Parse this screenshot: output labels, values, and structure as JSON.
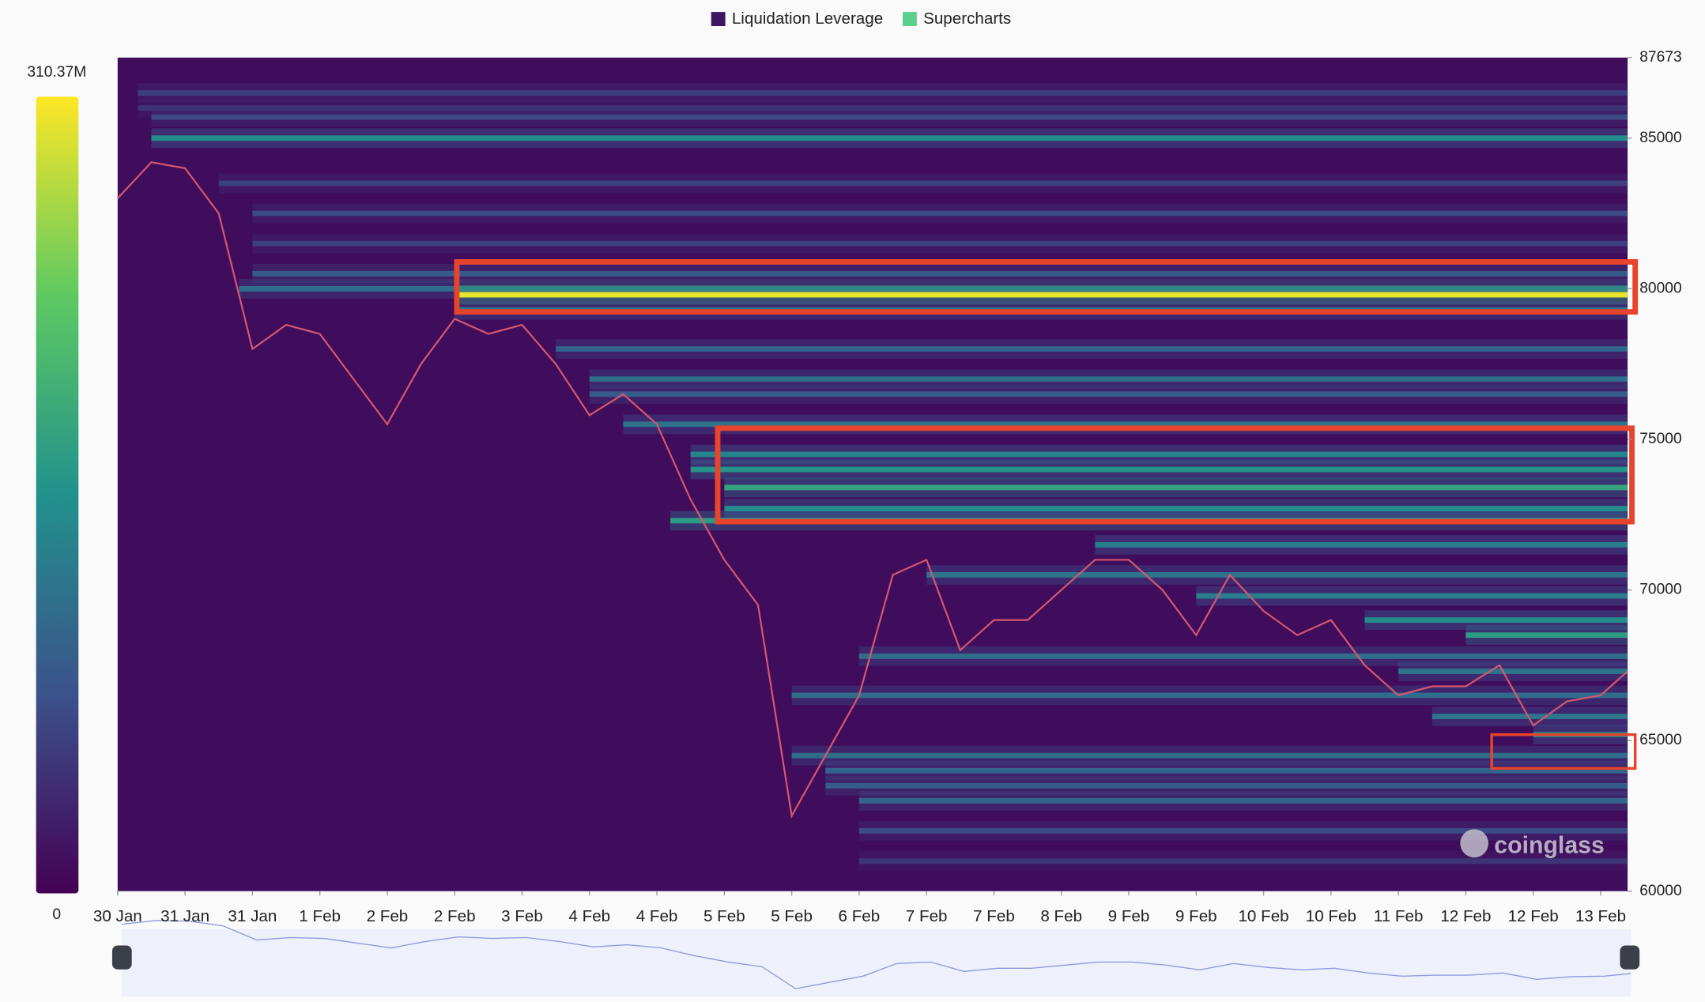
{
  "chart_data": {
    "type": "heatmap",
    "legend": [
      {
        "name": "Liquidation Leverage",
        "color": "#3d1762"
      },
      {
        "name": "Supercharts",
        "color": "#5ccf8e"
      }
    ],
    "watermark": "coinglass",
    "zlim": [
      0,
      310.37
    ],
    "zticks": [
      0,
      {
        "value": 310.37,
        "label": "310.37M"
      }
    ],
    "ylim": [
      60000,
      87673
    ],
    "yticks": [
      60000,
      65000,
      70000,
      75000,
      80000,
      85000,
      87673
    ],
    "xlim": [
      0,
      22.4
    ],
    "xticks": [
      {
        "value": 0,
        "label": "30 Jan"
      },
      {
        "value": 1,
        "label": "31 Jan"
      },
      {
        "value": 2,
        "label": "31 Jan"
      },
      {
        "value": 3,
        "label": "1 Feb"
      },
      {
        "value": 4,
        "label": "2 Feb"
      },
      {
        "value": 5,
        "label": "2 Feb"
      },
      {
        "value": 6,
        "label": "3 Feb"
      },
      {
        "value": 7,
        "label": "4 Feb"
      },
      {
        "value": 8,
        "label": "4 Feb"
      },
      {
        "value": 9,
        "label": "5 Feb"
      },
      {
        "value": 10,
        "label": "5 Feb"
      },
      {
        "value": 11,
        "label": "6 Feb"
      },
      {
        "value": 12,
        "label": "7 Feb"
      },
      {
        "value": 13,
        "label": "7 Feb"
      },
      {
        "value": 14,
        "label": "8 Feb"
      },
      {
        "value": 15,
        "label": "9 Feb"
      },
      {
        "value": 16,
        "label": "9 Feb"
      },
      {
        "value": 17,
        "label": "10 Feb"
      },
      {
        "value": 18,
        "label": "10 Feb"
      },
      {
        "value": 19,
        "label": "11 Feb"
      },
      {
        "value": 20,
        "label": "12 Feb"
      },
      {
        "value": 21,
        "label": "12 Feb"
      },
      {
        "value": 22,
        "label": "13 Feb"
      }
    ],
    "price": {
      "color": "#d4576f",
      "x": [
        0,
        0.5,
        1,
        1.5,
        2,
        2.5,
        3,
        3.5,
        4,
        4.5,
        5,
        5.5,
        6,
        6.5,
        7,
        7.5,
        8,
        8.5,
        9,
        9.5,
        10,
        10.5,
        11,
        11.5,
        12,
        12.5,
        13,
        13.5,
        14,
        14.5,
        15,
        15.5,
        16,
        16.5,
        17,
        17.5,
        18,
        18.5,
        19,
        19.5,
        20,
        20.5,
        21,
        21.5,
        22,
        22.4
      ],
      "values": [
        83000,
        84200,
        84000,
        82500,
        78000,
        78800,
        78500,
        77000,
        75500,
        77500,
        79000,
        78500,
        78800,
        77500,
        75800,
        76500,
        75500,
        73000,
        71000,
        69500,
        62500,
        64500,
        66500,
        70500,
        71000,
        68000,
        69000,
        69000,
        70000,
        71000,
        71000,
        70000,
        68500,
        70500,
        69300,
        68500,
        69000,
        67500,
        66500,
        66800,
        66800,
        67500,
        65500,
        66300,
        66500,
        67300
      ]
    },
    "heatmap": {
      "prices": [
        86500,
        86000,
        85700,
        85000,
        83500,
        82500,
        81500,
        80500,
        80000,
        79800,
        79300,
        78000,
        77000,
        76500,
        75500,
        74500,
        74000,
        73400,
        72700,
        72300,
        71500,
        70500,
        69800,
        69000,
        68500,
        67800,
        67300,
        66500,
        65800,
        65200,
        64500,
        64000,
        63500,
        63000,
        62000,
        61000
      ],
      "start": [
        0.3,
        0.3,
        0.5,
        0.5,
        1.5,
        2,
        2,
        2,
        1.8,
        5,
        5,
        6.5,
        7,
        7,
        7.5,
        8.5,
        8.5,
        9,
        9,
        8.2,
        14.5,
        12,
        16,
        18.5,
        20,
        11,
        19,
        10,
        19.5,
        21,
        10,
        10.5,
        10.5,
        11,
        11,
        11
      ],
      "values": [
        60,
        50,
        70,
        150,
        60,
        70,
        60,
        90,
        110,
        300,
        120,
        100,
        110,
        90,
        120,
        140,
        160,
        180,
        150,
        170,
        130,
        120,
        130,
        150,
        170,
        110,
        120,
        110,
        120,
        140,
        110,
        100,
        90,
        100,
        70,
        50
      ]
    }
  }
}
